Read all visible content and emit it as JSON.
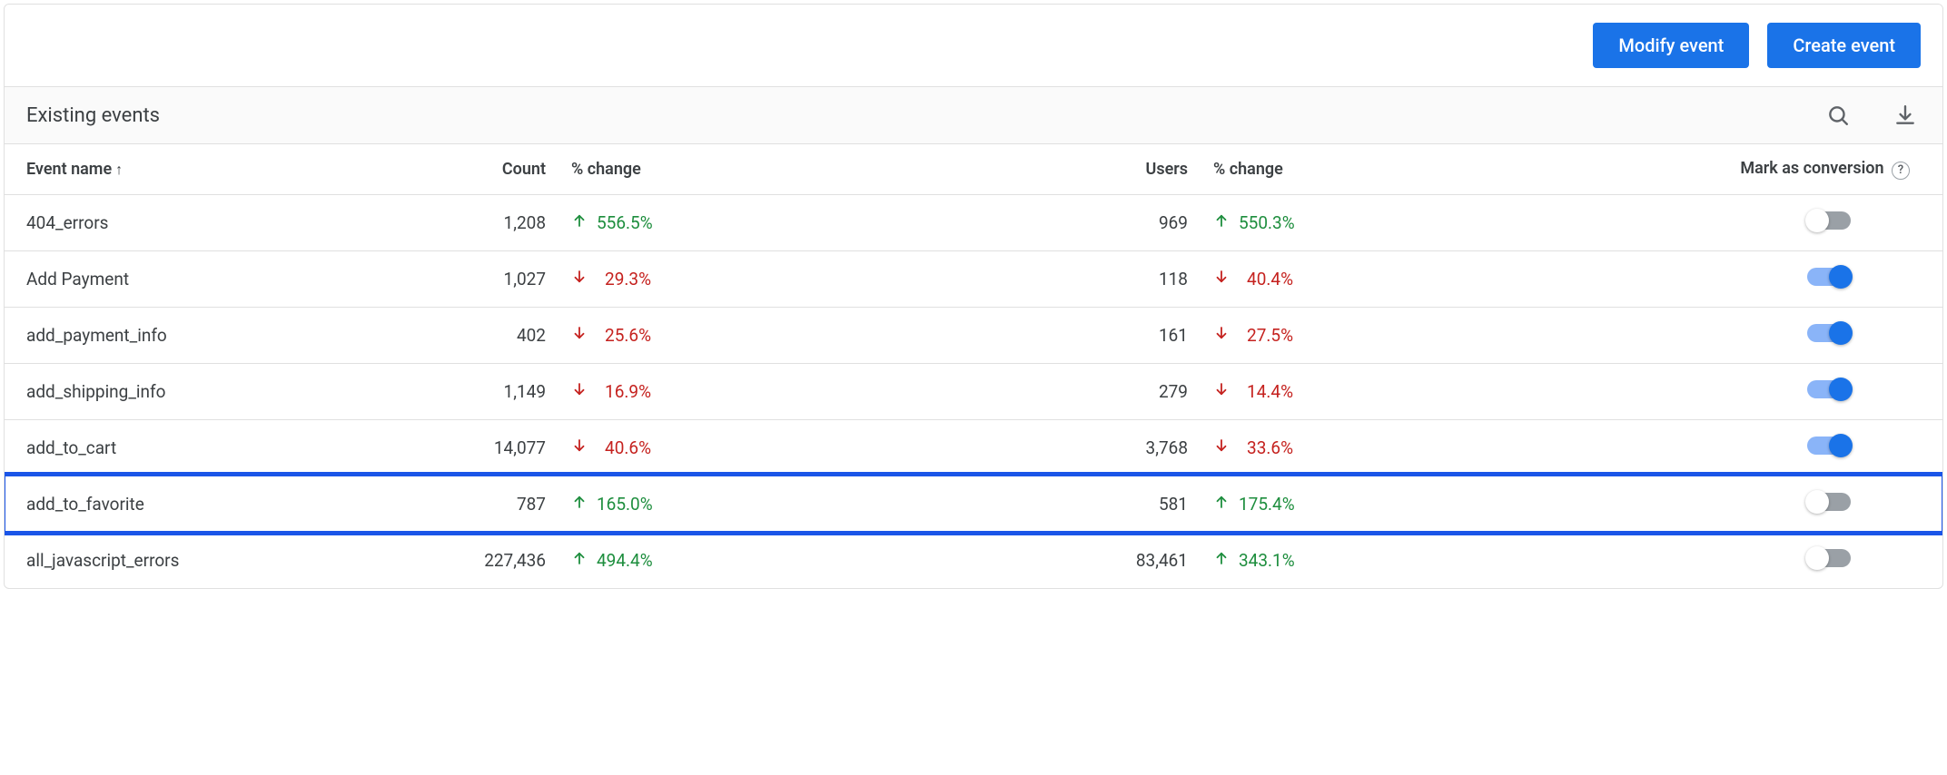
{
  "colors": {
    "primary": "#1a73e8",
    "up": "#1e8e3e",
    "down": "#c5221f",
    "border": "#e0e0e0",
    "text": "#3c4043",
    "muted": "#5f6368",
    "toggleOffTrack": "#9aa0a6",
    "toggleOnTrack": "#8ab4f8",
    "highlight": "#1a55e8"
  },
  "actions": {
    "modify_label": "Modify event",
    "create_label": "Create event"
  },
  "section_title": "Existing events",
  "columns": {
    "name": "Event name",
    "count": "Count",
    "count_change": "% change",
    "users": "Users",
    "users_change": "% change",
    "conversion": "Mark as conversion"
  },
  "sort": {
    "column": "name",
    "dir": "asc",
    "glyph": "↑"
  },
  "rows": [
    {
      "name": "404_errors",
      "count": "1,208",
      "count_change": "556.5%",
      "count_dir": "up",
      "users": "969",
      "users_change": "550.3%",
      "users_dir": "up",
      "conversion": false,
      "highlight": false
    },
    {
      "name": "Add Payment",
      "count": "1,027",
      "count_change": "29.3%",
      "count_dir": "down",
      "users": "118",
      "users_change": "40.4%",
      "users_dir": "down",
      "conversion": true,
      "highlight": false
    },
    {
      "name": "add_payment_info",
      "count": "402",
      "count_change": "25.6%",
      "count_dir": "down",
      "users": "161",
      "users_change": "27.5%",
      "users_dir": "down",
      "conversion": true,
      "highlight": false
    },
    {
      "name": "add_shipping_info",
      "count": "1,149",
      "count_change": "16.9%",
      "count_dir": "down",
      "users": "279",
      "users_change": "14.4%",
      "users_dir": "down",
      "conversion": true,
      "highlight": false
    },
    {
      "name": "add_to_cart",
      "count": "14,077",
      "count_change": "40.6%",
      "count_dir": "down",
      "users": "3,768",
      "users_change": "33.6%",
      "users_dir": "down",
      "conversion": true,
      "highlight": false
    },
    {
      "name": "add_to_favorite",
      "count": "787",
      "count_change": "165.0%",
      "count_dir": "up",
      "users": "581",
      "users_change": "175.4%",
      "users_dir": "up",
      "conversion": false,
      "highlight": true
    },
    {
      "name": "all_javascript_errors",
      "count": "227,436",
      "count_change": "494.4%",
      "count_dir": "up",
      "users": "83,461",
      "users_change": "343.1%",
      "users_dir": "up",
      "conversion": false,
      "highlight": false
    }
  ]
}
